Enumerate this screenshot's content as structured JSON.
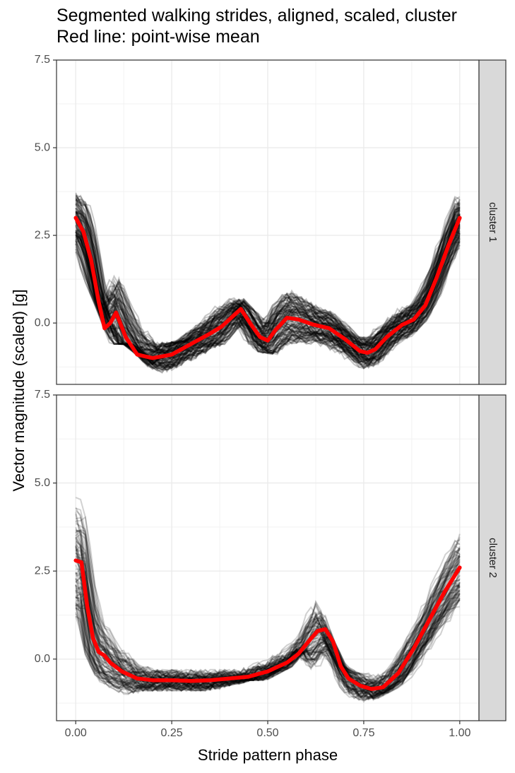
{
  "chart_data": {
    "type": "line",
    "title": "Segmented walking strides, aligned, scaled, cluster",
    "subtitle": "Red line: point-wise mean",
    "xlabel": "Stride pattern phase",
    "ylabel": "Vector magnitude (scaled) [g]",
    "xlim": [
      -0.05,
      1.05
    ],
    "ylim": [
      -1.75,
      7.5
    ],
    "x_ticks": [
      0.0,
      0.25,
      0.5,
      0.75,
      1.0
    ],
    "x_tick_labels": [
      "0.00",
      "0.25",
      "0.50",
      "0.75",
      "1.00"
    ],
    "y_ticks": [
      0.0,
      2.5,
      5.0,
      7.5
    ],
    "y_tick_labels": [
      "0.0",
      "2.5",
      "5.0",
      "7.5"
    ],
    "grid": true,
    "facet_strip": "right",
    "colors": {
      "mean_line": "#ff0000",
      "stride_lines": "#000000",
      "strip_fill": "#d9d9d9",
      "grid": "#ebebeb"
    },
    "panels": [
      {
        "label": "cluster 1",
        "mean": {
          "name": "point-wise mean",
          "x": [
            0.0,
            0.02,
            0.04,
            0.06,
            0.075,
            0.09,
            0.105,
            0.13,
            0.16,
            0.2,
            0.25,
            0.3,
            0.35,
            0.38,
            0.4,
            0.43,
            0.46,
            0.48,
            0.5,
            0.52,
            0.55,
            0.58,
            0.62,
            0.66,
            0.7,
            0.74,
            0.76,
            0.78,
            0.81,
            0.85,
            0.88,
            0.91,
            0.94,
            0.97,
            1.0
          ],
          "values": [
            3.0,
            2.6,
            1.8,
            0.6,
            -0.15,
            0.0,
            0.3,
            -0.4,
            -0.9,
            -1.0,
            -0.9,
            -0.6,
            -0.3,
            -0.1,
            0.1,
            0.4,
            -0.1,
            -0.4,
            -0.5,
            -0.2,
            0.15,
            0.1,
            -0.05,
            -0.15,
            -0.45,
            -0.8,
            -0.85,
            -0.75,
            -0.4,
            -0.05,
            0.1,
            0.5,
            1.3,
            2.2,
            3.0
          ]
        },
        "band_lower": [
          2.2,
          1.3,
          0.4,
          -0.6,
          -0.6,
          -0.9,
          -1.3,
          -1.5,
          -1.4,
          -1.1,
          -0.8,
          -0.6,
          -0.1,
          -0.6,
          -0.8,
          -0.9,
          -0.7,
          -0.6,
          -0.6,
          -0.8,
          -0.9,
          -1.2,
          -1.3,
          -1.1,
          -0.6,
          -0.4,
          0.0,
          0.6,
          1.6,
          2.2
        ],
        "band_upper": [
          3.8,
          3.4,
          2.2,
          1.8,
          1.6,
          0.6,
          -0.5,
          -0.6,
          -0.5,
          -0.2,
          0.2,
          0.7,
          0.8,
          0.4,
          0.2,
          0.6,
          1.0,
          0.8,
          0.5,
          0.3,
          0.0,
          -0.4,
          -0.4,
          -0.1,
          0.3,
          0.5,
          1.0,
          1.8,
          2.8,
          3.6
        ]
      },
      {
        "label": "cluster 2",
        "mean": {
          "name": "point-wise mean",
          "x": [
            0.0,
            0.015,
            0.03,
            0.045,
            0.06,
            0.075,
            0.09,
            0.12,
            0.16,
            0.2,
            0.25,
            0.3,
            0.35,
            0.4,
            0.45,
            0.5,
            0.55,
            0.58,
            0.61,
            0.63,
            0.65,
            0.67,
            0.69,
            0.71,
            0.74,
            0.77,
            0.8,
            0.84,
            0.88,
            0.92,
            0.96,
            1.0
          ],
          "values": [
            2.8,
            2.75,
            1.5,
            0.6,
            0.2,
            0.1,
            -0.1,
            -0.35,
            -0.55,
            -0.6,
            -0.6,
            -0.62,
            -0.6,
            -0.55,
            -0.5,
            -0.35,
            -0.1,
            0.15,
            0.55,
            0.8,
            0.85,
            0.5,
            -0.2,
            -0.55,
            -0.75,
            -0.85,
            -0.8,
            -0.4,
            0.3,
            1.1,
            1.9,
            2.6
          ]
        },
        "band_lower": [
          0.8,
          0.2,
          -0.6,
          -1.0,
          -1.0,
          -0.9,
          -0.9,
          -0.9,
          -0.9,
          -0.9,
          -0.9,
          -0.8,
          -0.7,
          -0.6,
          -0.6,
          -0.4,
          -0.2,
          0.3,
          -0.5,
          -1.0,
          -1.1,
          -1.3,
          -1.2,
          -1.0,
          -0.8,
          -0.5,
          0.0,
          0.5,
          0.9,
          1.5
        ],
        "band_upper": [
          4.8,
          3.8,
          1.5,
          0.4,
          0.1,
          -0.1,
          -0.3,
          -0.3,
          -0.3,
          -0.3,
          -0.3,
          -0.3,
          -0.3,
          -0.2,
          0.0,
          0.3,
          0.6,
          1.4,
          1.7,
          0.6,
          -0.2,
          -0.4,
          -0.4,
          -0.2,
          0.2,
          0.8,
          1.4,
          2.2,
          3.0,
          3.9
        ]
      }
    ]
  }
}
